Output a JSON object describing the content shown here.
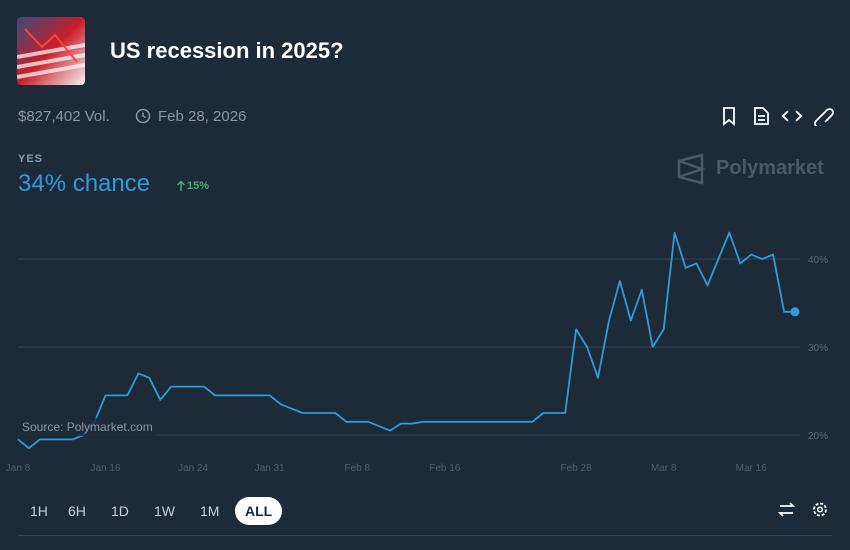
{
  "header": {
    "title": "US recession in 2025?",
    "volume": "$827,402 Vol.",
    "end_date": "Feb 28, 2026"
  },
  "outcome": {
    "label": "YES",
    "chance": "34% chance",
    "change": "15%"
  },
  "brand": "Polymarket",
  "source": "Source: Polymarket.com",
  "time_ranges": [
    "1H",
    "6H",
    "1D",
    "1W",
    "1M",
    "ALL"
  ],
  "selected_range": "ALL",
  "chart_data": {
    "type": "line",
    "color": "#2e9bdc",
    "grid": true,
    "categories": [
      "Jan 8",
      null,
      null,
      null,
      null,
      null,
      null,
      null,
      "Jan 16",
      null,
      null,
      null,
      null,
      null,
      null,
      null,
      "Jan 24",
      null,
      null,
      null,
      null,
      null,
      null,
      "Jan 31",
      null,
      null,
      null,
      null,
      null,
      null,
      null,
      "Feb 8",
      null,
      null,
      null,
      null,
      null,
      null,
      null,
      "Feb 16",
      null,
      null,
      null,
      null,
      null,
      null,
      null,
      null,
      null,
      null,
      null,
      "Feb 28",
      null,
      null,
      null,
      null,
      null,
      null,
      null,
      "Mar 8",
      null,
      null,
      null,
      null,
      null,
      null,
      null,
      "Mar 16",
      null,
      null,
      null,
      null
    ],
    "values": [
      19.5,
      18.5,
      19.5,
      19.5,
      19.5,
      19.5,
      20,
      21.5,
      24.5,
      24.5,
      24.5,
      27,
      26.5,
      24,
      25.5,
      25.5,
      25.5,
      25.5,
      24.5,
      24.5,
      24.5,
      24.5,
      24.5,
      24.5,
      23.5,
      23,
      22.5,
      22.5,
      22.5,
      22.5,
      21.5,
      21.5,
      21.5,
      21,
      20.5,
      21.3,
      21.3,
      21.5,
      21.5,
      21.5,
      21.5,
      21.5,
      21.5,
      21.5,
      21.5,
      21.5,
      21.5,
      21.5,
      22.5,
      22.5,
      22.5,
      32,
      30,
      26.5,
      33,
      37.5,
      33,
      36.5,
      30,
      32,
      43,
      39,
      39.5,
      37,
      40,
      43,
      39.5,
      40.5,
      40,
      40.5,
      34,
      34
    ],
    "ylim": [
      17.5,
      45
    ],
    "yticks": [
      {
        "value": 20,
        "label": "20%"
      },
      {
        "value": 30,
        "label": "30%"
      },
      {
        "value": 40,
        "label": "40%"
      }
    ]
  }
}
